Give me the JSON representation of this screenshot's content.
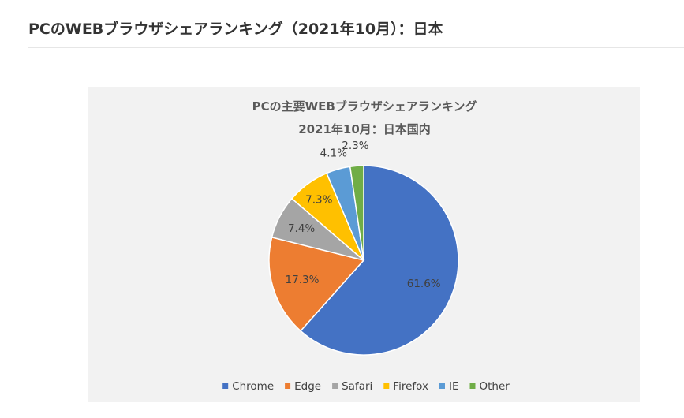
{
  "page": {
    "heading": "PCのWEBブラウザシェアランキング（2021年10月）：日本"
  },
  "chart_data": {
    "type": "pie",
    "title": "PCの主要WEBブラウザシェアランキング",
    "subtitle": "2021年10月：日本国内",
    "categories": [
      "Chrome",
      "Edge",
      "Safari",
      "Firefox",
      "IE",
      "Other"
    ],
    "values": [
      61.6,
      17.3,
      7.4,
      7.3,
      4.1,
      2.3
    ],
    "labels": [
      "61.6%",
      "17.3%",
      "7.4%",
      "7.3%",
      "4.1%",
      "2.3%"
    ],
    "colors": [
      "#4472c4",
      "#ed7d31",
      "#a5a5a5",
      "#ffc000",
      "#5b9bd5",
      "#70ad47"
    ],
    "label_colors": [
      "#ffffff",
      "#404040",
      "#404040",
      "#404040",
      "#404040",
      "#404040"
    ],
    "legend_position": "bottom",
    "start_angle": "12 o'clock",
    "direction": "clockwise"
  }
}
